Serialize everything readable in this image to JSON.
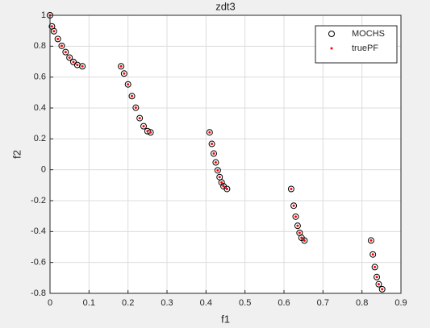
{
  "chart_data": {
    "type": "scatter",
    "title": "zdt3",
    "x_label": "f1",
    "y_label": "f2",
    "xlim": [
      0,
      0.9
    ],
    "xticks": [
      0,
      0.1,
      0.2,
      0.3,
      0.4,
      0.5,
      0.6,
      0.7,
      0.8,
      0.9
    ],
    "ylim": [
      -0.8,
      1
    ],
    "yticks": [
      -0.8,
      -0.6,
      -0.4,
      -0.2,
      0,
      0.2,
      0.4,
      0.6,
      0.8,
      1
    ],
    "grid": true,
    "legend": "top-right",
    "series": [
      {
        "name": "MOCHS",
        "color": "#000000",
        "marker": "circle",
        "x": [
          0,
          0.005,
          0.01,
          0.02,
          0.03,
          0.04,
          0.05,
          0.06,
          0.07,
          0.083,
          0.1822,
          0.19,
          0.2,
          0.21,
          0.22,
          0.23,
          0.24,
          0.25,
          0.2578,
          0.4093,
          0.415,
          0.42,
          0.425,
          0.43,
          0.435,
          0.44,
          0.445,
          0.4539,
          0.6184,
          0.625,
          0.63,
          0.635,
          0.64,
          0.645,
          0.6525,
          0.8233,
          0.828,
          0.833,
          0.838,
          0.843,
          0.8518
        ],
        "values": [
          1,
          0.9285,
          0.8969,
          0.8468,
          0.8025,
          0.762,
          0.7264,
          0.698,
          0.6788,
          0.6697,
          0.6698,
          0.6228,
          0.5528,
          0.4768,
          0.4017,
          0.3343,
          0.2819,
          0.25,
          0.2422,
          0.2423,
          0.1676,
          0.105,
          0.0476,
          -0.0036,
          -0.0471,
          -0.0817,
          -0.1066,
          -0.1241,
          -0.1243,
          -0.2325,
          -0.3034,
          -0.3627,
          -0.4086,
          -0.4402,
          -0.4583,
          -0.4578,
          -0.548,
          -0.6301,
          -0.6946,
          -0.7409,
          -0.7733
        ]
      },
      {
        "name": "truePF",
        "color": "#ff0000",
        "marker": "dot",
        "x": [
          0,
          0.005,
          0.01,
          0.02,
          0.03,
          0.04,
          0.05,
          0.06,
          0.07,
          0.083,
          0.1822,
          0.19,
          0.2,
          0.21,
          0.22,
          0.23,
          0.24,
          0.25,
          0.2578,
          0.4093,
          0.415,
          0.42,
          0.425,
          0.43,
          0.435,
          0.44,
          0.445,
          0.4539,
          0.6184,
          0.625,
          0.63,
          0.635,
          0.64,
          0.645,
          0.6525,
          0.8233,
          0.828,
          0.833,
          0.838,
          0.843,
          0.8518
        ],
        "values": [
          1,
          0.9285,
          0.8969,
          0.8468,
          0.8025,
          0.762,
          0.7264,
          0.698,
          0.6788,
          0.6697,
          0.6698,
          0.6228,
          0.5528,
          0.4768,
          0.4017,
          0.3343,
          0.2819,
          0.25,
          0.2422,
          0.2423,
          0.1676,
          0.105,
          0.0476,
          -0.0036,
          -0.0471,
          -0.0817,
          -0.1066,
          -0.1241,
          -0.1243,
          -0.2325,
          -0.3034,
          -0.3627,
          -0.4086,
          -0.4402,
          -0.4583,
          -0.4578,
          -0.548,
          -0.6301,
          -0.6946,
          -0.7409,
          -0.7733
        ]
      }
    ]
  }
}
